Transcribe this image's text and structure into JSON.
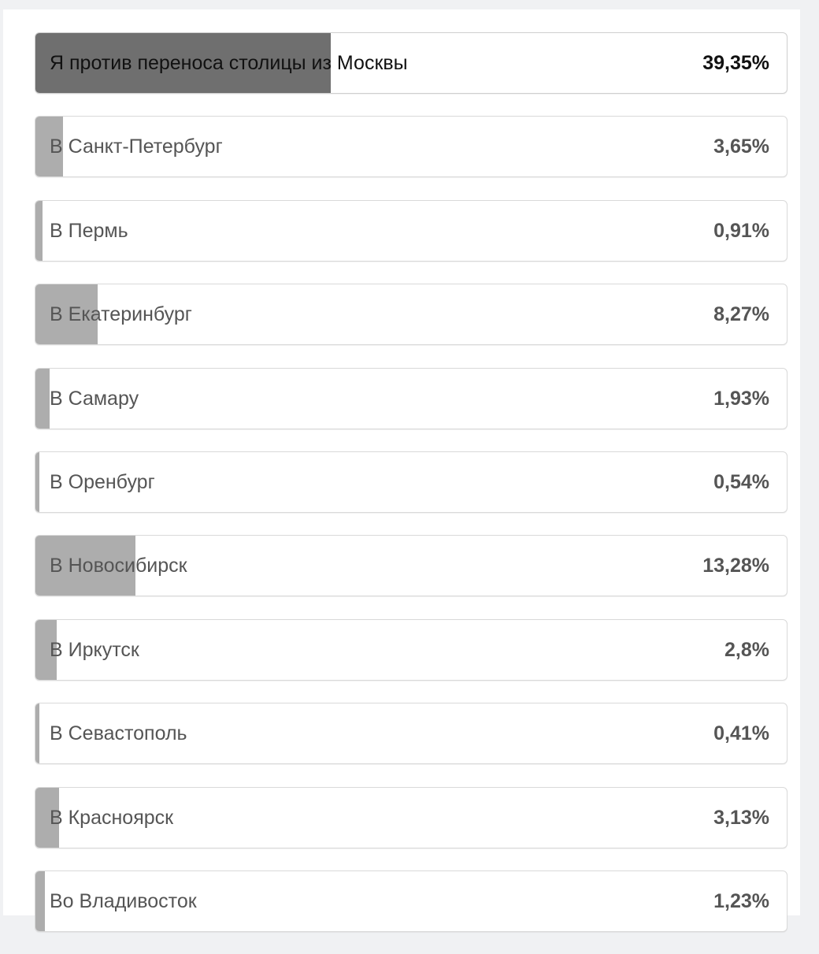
{
  "poll": {
    "options": [
      {
        "label": "Я против переноса столицы из Москвы",
        "percent_text": "39,35%",
        "share": 39.35,
        "leader": true
      },
      {
        "label": "В Санкт-Петербург",
        "percent_text": "3,65%",
        "share": 3.65,
        "leader": false
      },
      {
        "label": "В Пермь",
        "percent_text": "0,91%",
        "share": 0.91,
        "leader": false
      },
      {
        "label": "В Екатеринбург",
        "percent_text": "8,27%",
        "share": 8.27,
        "leader": false
      },
      {
        "label": "В Самару",
        "percent_text": "1,93%",
        "share": 1.93,
        "leader": false
      },
      {
        "label": "В Оренбург",
        "percent_text": "0,54%",
        "share": 0.54,
        "leader": false
      },
      {
        "label": "В Новосибирск",
        "percent_text": "13,28%",
        "share": 13.28,
        "leader": false
      },
      {
        "label": "В Иркутск",
        "percent_text": "2,8%",
        "share": 2.8,
        "leader": false
      },
      {
        "label": "В Севастополь",
        "percent_text": "0,41%",
        "share": 0.41,
        "leader": false
      },
      {
        "label": "В Красноярск",
        "percent_text": "3,13%",
        "share": 3.13,
        "leader": false
      },
      {
        "label": "Во Владивосток",
        "percent_text": "1,23%",
        "share": 1.23,
        "leader": false
      }
    ],
    "colors": {
      "bar_leader": "#6f6f6f",
      "bar_other": "#adadad",
      "text_leader": "#111111",
      "text_other": "#555555"
    }
  }
}
